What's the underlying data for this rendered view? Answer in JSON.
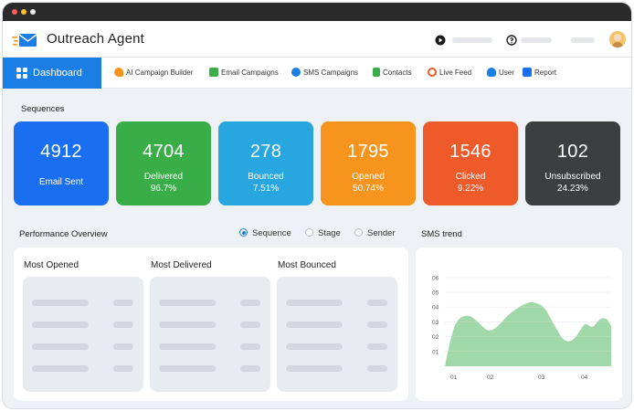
{
  "app": {
    "title": "Outreach Agent",
    "accent_color": "#1a7ee4"
  },
  "header_icons": [
    "play-circle-icon",
    "help-circle-icon"
  ],
  "nav": {
    "active": "Dashboard",
    "items": [
      {
        "label": "AI Campaign Builder",
        "icon": "rocket-icon"
      },
      {
        "label": "Email Campaigns",
        "icon": "envelope-icon"
      },
      {
        "label": "SMS Campaigns",
        "icon": "chat-bubble-icon"
      },
      {
        "label": "Contacts",
        "icon": "contacts-icon"
      },
      {
        "label": "Live Feed",
        "icon": "broadcast-icon"
      },
      {
        "label": "User",
        "icon": "user-icon"
      },
      {
        "label": "Report",
        "icon": "report-icon"
      }
    ]
  },
  "sequences": {
    "label": "Sequences",
    "cards": [
      {
        "value": "4912",
        "label": "Email Sent",
        "pct": "",
        "color": "#1a6ff0"
      },
      {
        "value": "4704",
        "label": "Delivered",
        "pct": "96.7%",
        "color": "#38ad48"
      },
      {
        "value": "278",
        "label": "Bounced",
        "pct": "7.51%",
        "color": "#27a6e0"
      },
      {
        "value": "1795",
        "label": "Opened",
        "pct": "50.74%",
        "color": "#f7941d"
      },
      {
        "value": "1546",
        "label": "Clicked",
        "pct": "9.22%",
        "color": "#ef5a2b"
      },
      {
        "value": "102",
        "label": "Unsubscribed",
        "pct": "24.23%",
        "color": "#3d3e40"
      }
    ]
  },
  "performance": {
    "label": "Performance Overview",
    "options": [
      "Sequence",
      "Stage",
      "Sender"
    ],
    "selected": "Sequence",
    "columns": [
      "Most Opened",
      "Most Delivered",
      "Most Bounced"
    ]
  },
  "sms": {
    "label": "SMS trend"
  },
  "chart_data": {
    "type": "area",
    "title": "SMS trend",
    "xlabel": "",
    "ylabel": "",
    "x_tick_labels": [
      "01",
      "02",
      "03",
      "04"
    ],
    "y_tick_labels": [
      "01",
      "02",
      "03",
      "04",
      "05",
      "06"
    ],
    "ylim": [
      0,
      6.5
    ],
    "grid": true,
    "color": "#8fd19a",
    "series": [
      {
        "x": [
          0.0,
          0.3,
          0.6,
          1.0,
          1.4,
          1.8,
          2.2,
          2.6,
          3.0,
          3.3,
          3.6,
          3.9,
          4.2,
          4.5,
          4.8,
          5.0,
          5.3,
          5.6,
          5.9,
          6.2,
          6.5,
          6.8,
          7.0
        ],
        "y": [
          0.0,
          2.5,
          3.4,
          3.6,
          3.1,
          2.4,
          2.7,
          3.5,
          4.0,
          4.3,
          4.5,
          4.4,
          4.1,
          3.2,
          2.3,
          1.8,
          1.7,
          2.2,
          3.1,
          2.6,
          3.3,
          3.4,
          2.8
        ]
      }
    ]
  }
}
